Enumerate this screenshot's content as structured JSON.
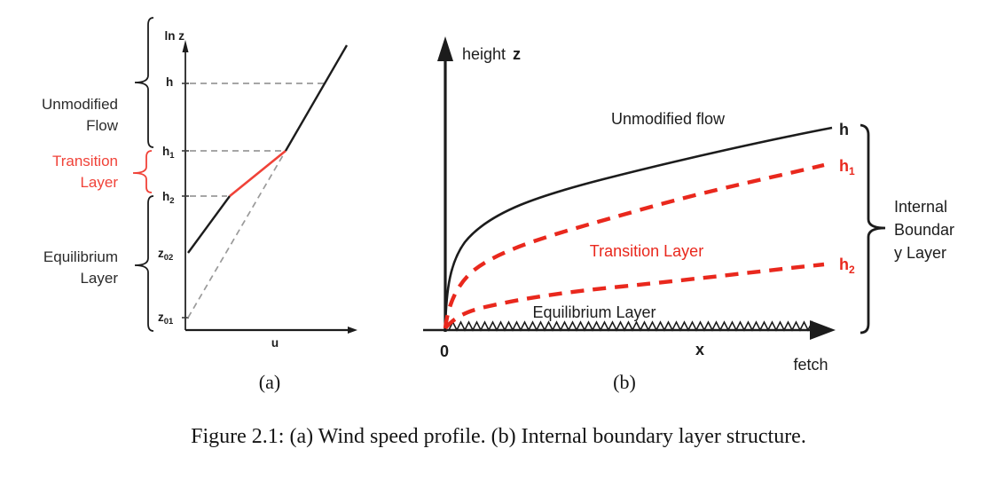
{
  "caption": "Figure 2.1: (a) Wind speed profile. (b) Internal boundary layer structure.",
  "colors": {
    "red_panel_a": "#f04238",
    "red_panel_b": "#e9281d",
    "dashed_gray": "#9a9a9a",
    "ink": "#1c1c1c"
  },
  "panel_a": {
    "tag": "(a)",
    "y_axis_label": "ln z",
    "x_axis_label": "u",
    "region_labels": {
      "unmodified_flow": [
        "Unmodified",
        "Flow"
      ],
      "transition_layer": [
        "Transition",
        "Layer"
      ],
      "equilibrium_layer": [
        "Equilibrium",
        "Layer"
      ]
    },
    "ticks": [
      {
        "base": "h",
        "sub": ""
      },
      {
        "base": "h",
        "sub": "1"
      },
      {
        "base": "h",
        "sub": "2"
      },
      {
        "base": "z",
        "sub": "02"
      },
      {
        "base": "z",
        "sub": "01"
      }
    ]
  },
  "panel_b": {
    "tag": "(b)",
    "y_axis_label_word": "height",
    "y_axis_label_var": "z",
    "origin_label": "0",
    "x_axis_label": "x",
    "x_axis_sublabel": "fetch",
    "curve_labels": {
      "unmodified": "Unmodified flow",
      "transition": "Transition Layer",
      "equilibrium": "Equilibrium Layer"
    },
    "height_labels": [
      {
        "base": "h",
        "sub": ""
      },
      {
        "base": "h",
        "sub": "1"
      },
      {
        "base": "h",
        "sub": "2"
      }
    ],
    "brace_label_lines": [
      "Internal",
      "Boundar",
      "y Layer"
    ]
  }
}
